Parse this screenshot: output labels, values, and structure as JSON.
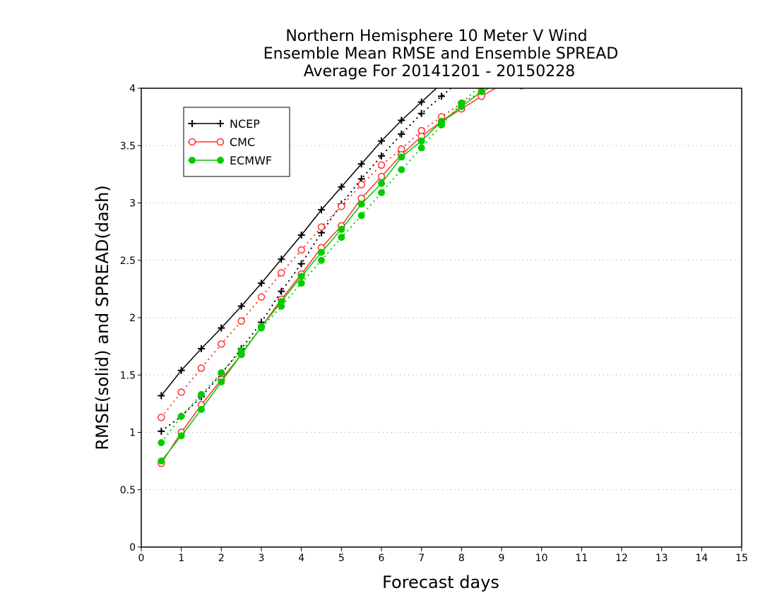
{
  "chart_data": {
    "type": "line",
    "title": [
      "Northern Hemisphere 10 Meter V Wind",
      "Ensemble Mean RMSE and Ensemble SPREAD",
      "Average For 20141201 - 20150228"
    ],
    "xlabel": "Forecast days",
    "ylabel": "RMSE(solid) and SPREAD(dash)",
    "xlim": [
      0,
      15
    ],
    "ylim": [
      0,
      4
    ],
    "xticks": [
      "0",
      "1",
      "2",
      "3",
      "4",
      "5",
      "6",
      "7",
      "8",
      "9",
      "10",
      "11",
      "12",
      "13",
      "14",
      "15"
    ],
    "yticks": [
      "0",
      "0.5",
      "1",
      "1.5",
      "2",
      "2.5",
      "3",
      "3.5",
      "4"
    ],
    "grid": "horizontal dotted",
    "legend_position": "top-left",
    "series": [
      {
        "name": "NCEP",
        "color": "#000000",
        "marker": "plus",
        "rmse": {
          "x": [
            0.5,
            1,
            1.5,
            2,
            2.5,
            3,
            3.5,
            4,
            4.5,
            5,
            5.5,
            6,
            6.5,
            7,
            7.5
          ],
          "y": [
            1.32,
            1.54,
            1.73,
            1.91,
            2.1,
            2.3,
            2.51,
            2.72,
            2.94,
            3.14,
            3.34,
            3.54,
            3.72,
            3.88,
            4.04
          ]
        },
        "spread": {
          "x": [
            0.5,
            1,
            1.5,
            2,
            2.5,
            3,
            3.5,
            4,
            4.5,
            5,
            5.5,
            6,
            6.5,
            7,
            7.5,
            8
          ],
          "y": [
            1.01,
            1.14,
            1.31,
            1.51,
            1.73,
            1.96,
            2.23,
            2.47,
            2.74,
            2.99,
            3.21,
            3.41,
            3.6,
            3.78,
            3.93,
            4.08
          ]
        }
      },
      {
        "name": "CMC",
        "color": "#ff3333",
        "marker": "open-circle",
        "rmse": {
          "x": [
            0.5,
            1,
            1.5,
            2,
            2.5,
            3,
            3.5,
            4,
            4.5,
            5,
            5.5,
            6,
            6.5,
            7,
            7.5,
            8,
            8.5,
            9
          ],
          "y": [
            0.73,
            1.0,
            1.24,
            1.46,
            1.68,
            1.92,
            2.16,
            2.38,
            2.61,
            2.8,
            3.04,
            3.23,
            3.42,
            3.58,
            3.71,
            3.82,
            3.93,
            4.03
          ]
        },
        "spread": {
          "x": [
            0.5,
            1,
            1.5,
            2,
            2.5,
            3,
            3.5,
            4,
            4.5,
            5,
            5.5,
            6,
            6.5,
            7,
            7.5,
            8,
            8.5
          ],
          "y": [
            1.13,
            1.35,
            1.56,
            1.77,
            1.97,
            2.18,
            2.39,
            2.59,
            2.79,
            2.97,
            3.16,
            3.33,
            3.47,
            3.63,
            3.75,
            3.87,
            3.97
          ]
        }
      },
      {
        "name": "ECMWF",
        "color": "#00cc00",
        "marker": "filled-circle",
        "rmse": {
          "x": [
            0.5,
            1,
            1.5,
            2,
            2.5,
            3,
            3.5,
            4,
            4.5,
            5,
            5.5,
            6,
            6.5,
            7,
            7.5,
            8,
            8.5,
            9
          ],
          "y": [
            0.75,
            0.97,
            1.2,
            1.44,
            1.68,
            1.92,
            2.14,
            2.36,
            2.57,
            2.77,
            2.99,
            3.17,
            3.4,
            3.54,
            3.71,
            3.84,
            3.97,
            4.05
          ]
        },
        "spread": {
          "x": [
            0.5,
            1,
            1.5,
            2,
            2.5,
            3,
            3.5,
            4,
            4.5,
            5,
            5.5,
            6,
            6.5,
            7,
            7.5,
            8,
            8.5,
            9,
            9.5
          ],
          "y": [
            0.91,
            1.14,
            1.33,
            1.52,
            1.71,
            1.91,
            2.1,
            2.3,
            2.5,
            2.7,
            2.89,
            3.09,
            3.29,
            3.48,
            3.68,
            3.87,
            4.03,
            4.03,
            4.02
          ]
        }
      }
    ]
  }
}
